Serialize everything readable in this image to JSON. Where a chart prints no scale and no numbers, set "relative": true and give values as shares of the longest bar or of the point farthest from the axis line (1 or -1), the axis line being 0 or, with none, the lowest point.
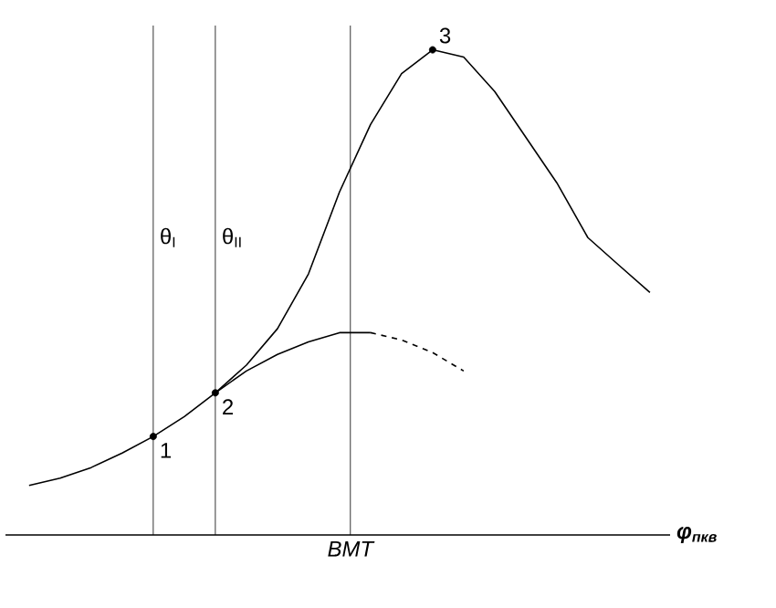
{
  "chart_data": {
    "type": "line",
    "relative": true,
    "xlabel": "φ$_{пкв}$",
    "categories": [
      null,
      null,
      null,
      null,
      null,
      null,
      null,
      null,
      null,
      null,
      null,
      null,
      null,
      null,
      null,
      null,
      null,
      null,
      null,
      null,
      null
    ],
    "series": [
      {
        "color": "#000000",
        "line_style": "solid",
        "values": [
          0.102,
          0.117,
          0.139,
          0.169,
          0.203,
          0.244,
          0.293,
          0.35,
          0.425,
          0.538,
          0.707,
          0.846,
          0.951,
          1.0,
          0.985,
          0.914,
          0.82,
          0.726,
          0.613,
          0.556,
          0.5
        ]
      },
      {
        "color": "#000000",
        "line_style": "solid",
        "values": [
          null,
          null,
          null,
          null,
          null,
          null,
          0.293,
          0.338,
          0.372,
          0.398,
          0.417,
          0.417,
          null,
          null,
          null,
          null,
          null,
          null,
          null,
          null,
          null
        ]
      },
      {
        "color": "#000000",
        "line_style": "dashed",
        "values": [
          null,
          null,
          null,
          null,
          null,
          null,
          null,
          null,
          null,
          null,
          null,
          0.417,
          0.402,
          0.376,
          0.338,
          null,
          null,
          null,
          null,
          null,
          null
        ]
      }
    ],
    "annotations": [
      {
        "text": "1",
        "y": 0.203
      },
      {
        "text": "2",
        "y": 0.293
      },
      {
        "text": "3",
        "y": 1.0
      },
      "θ$_{I}$",
      "θ$_{II}$",
      "ВМТ"
    ]
  }
}
